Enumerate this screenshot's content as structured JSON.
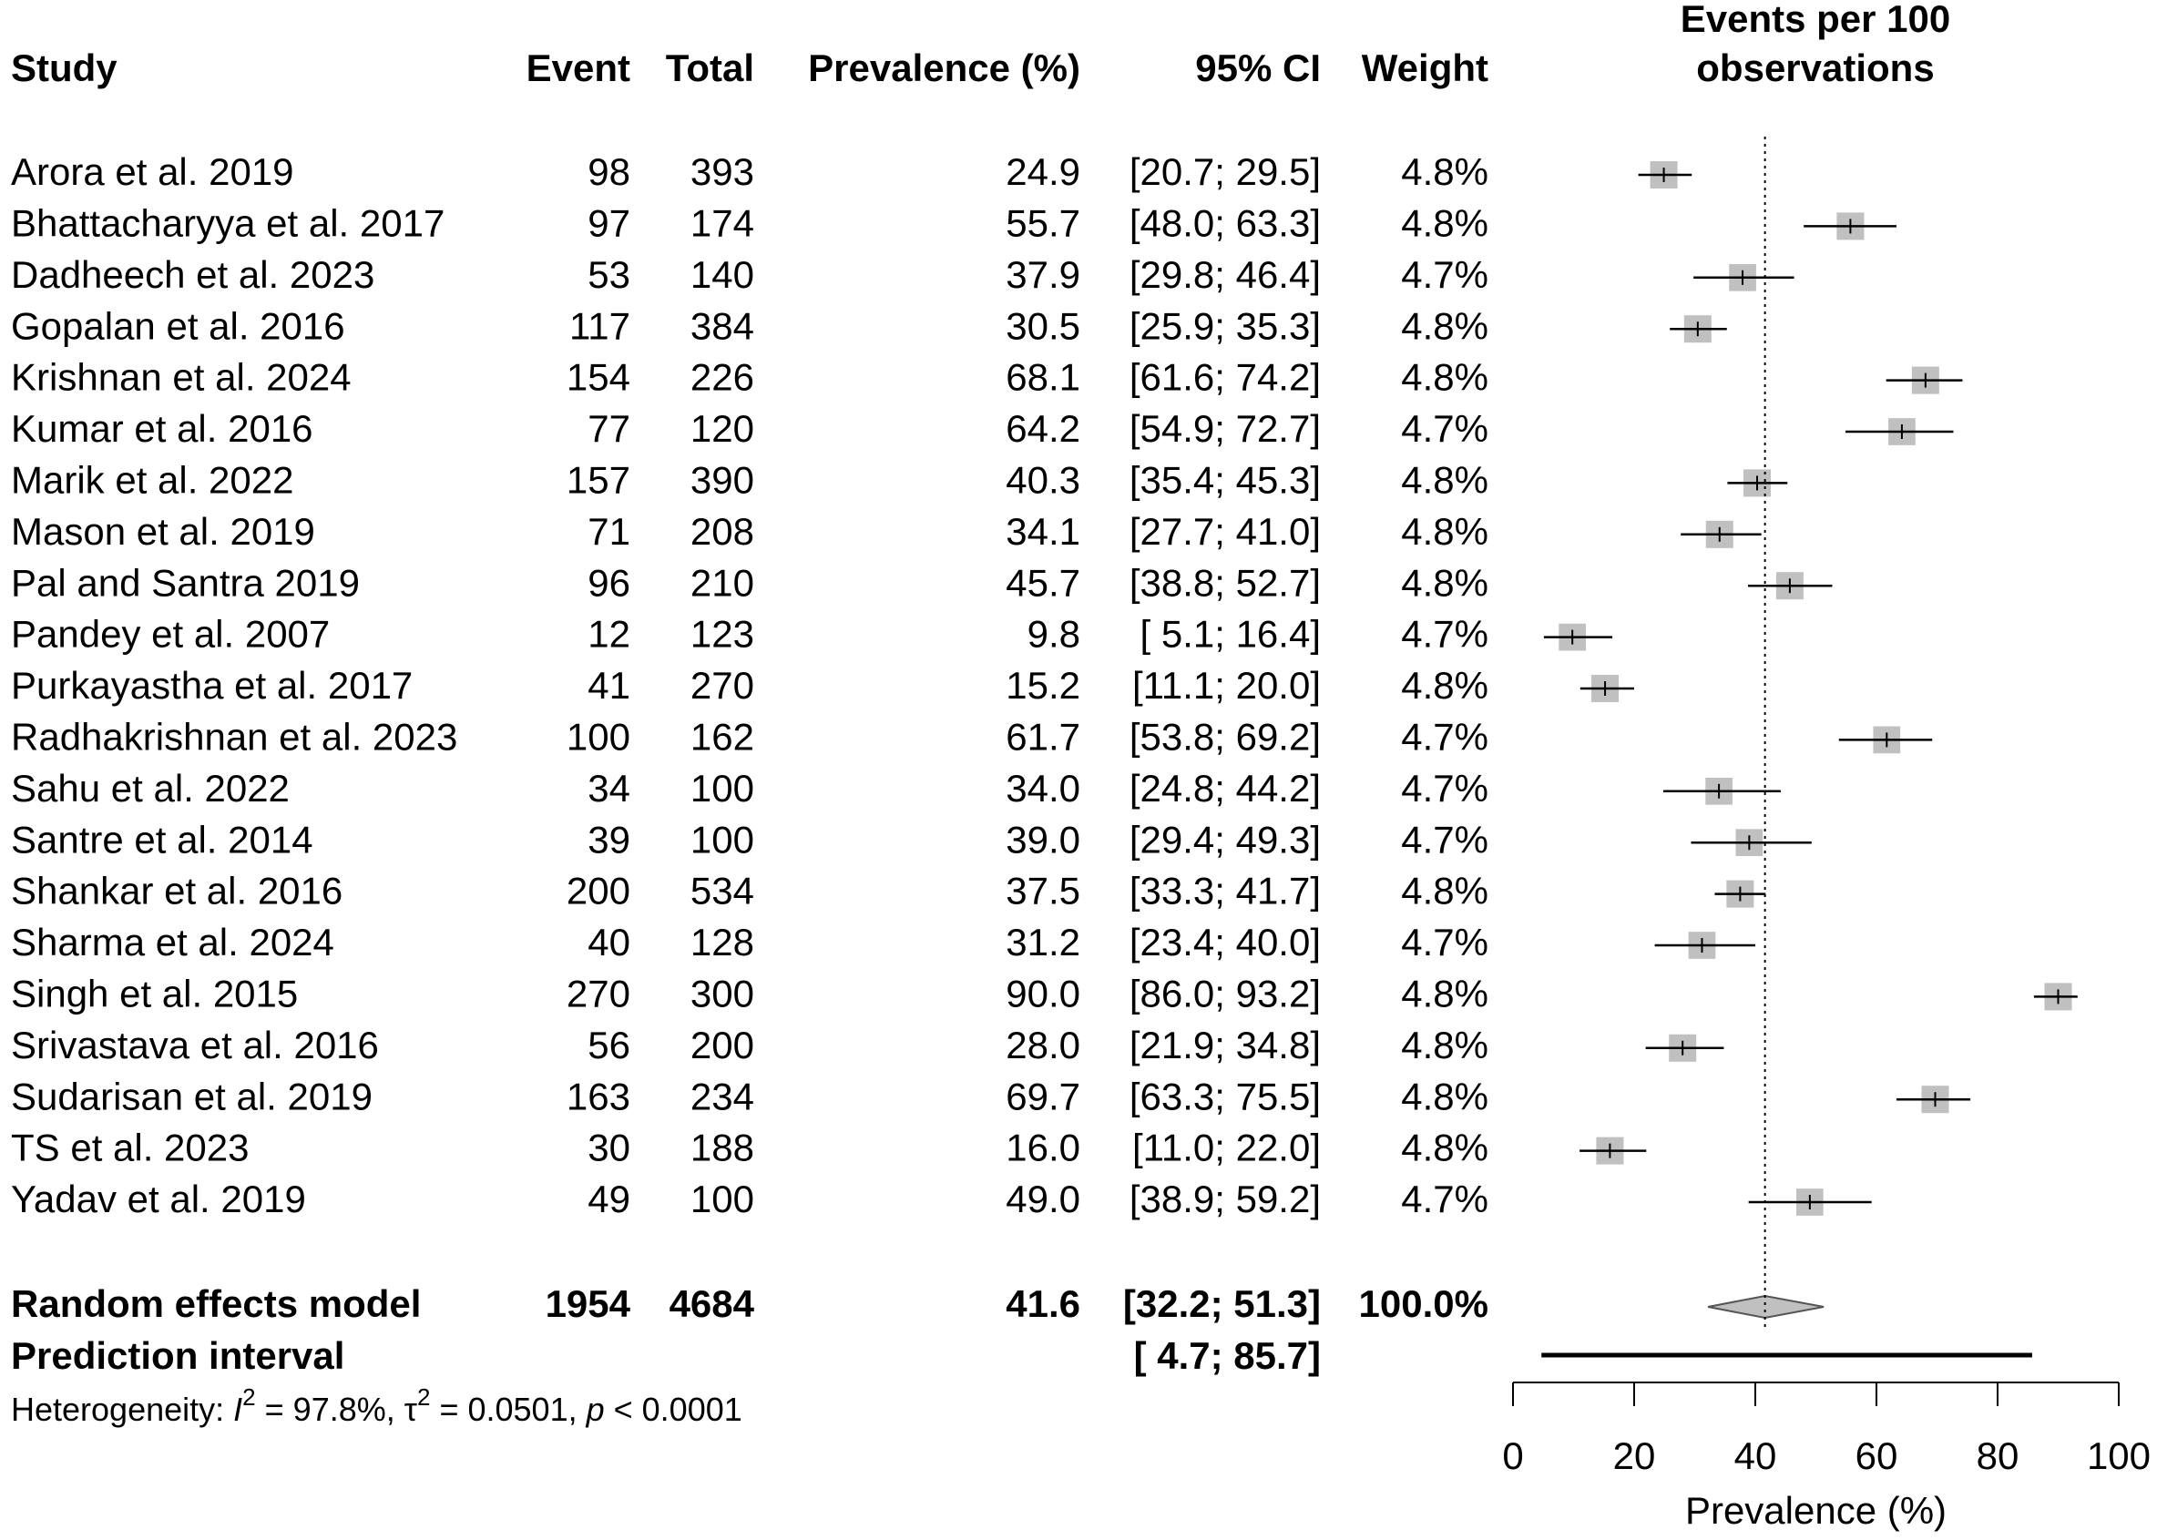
{
  "chart_data": {
    "type": "forest",
    "title": [
      "Events per 100",
      "observations"
    ],
    "columns": [
      "Study",
      "Event",
      "Total",
      "Prevalence (%)",
      "95% CI",
      "Weight"
    ],
    "studies": [
      "Arora et al. 2019",
      "Bhattacharyya et al. 2017",
      "Dadheech et al. 2023",
      "Gopalan et al. 2016",
      "Krishnan et al. 2024",
      "Kumar et al. 2016",
      "Marik et al. 2022",
      "Mason et al. 2019",
      "Pal and Santra 2019",
      "Pandey et al. 2007",
      "Purkayastha et al. 2017",
      "Radhakrishnan et al. 2023",
      "Sahu et al. 2022",
      "Santre et al. 2014",
      "Shankar et al. 2016",
      "Sharma et al. 2024",
      "Singh et al. 2015",
      "Srivastava et al. 2016",
      "Sudarisan et al. 2019",
      "TS et al. 2023",
      "Yadav et al. 2019"
    ],
    "events": [
      98,
      97,
      53,
      117,
      154,
      77,
      157,
      71,
      96,
      12,
      41,
      100,
      34,
      39,
      200,
      40,
      270,
      56,
      163,
      30,
      49
    ],
    "totals": [
      393,
      174,
      140,
      384,
      226,
      120,
      390,
      208,
      210,
      123,
      270,
      162,
      100,
      100,
      534,
      128,
      300,
      200,
      234,
      188,
      100
    ],
    "values": [
      24.9,
      55.7,
      37.9,
      30.5,
      68.1,
      64.2,
      40.3,
      34.1,
      45.7,
      9.8,
      15.2,
      61.7,
      34.0,
      39.0,
      37.5,
      31.2,
      90.0,
      28.0,
      69.7,
      16.0,
      49.0
    ],
    "value_labels": [
      "24.9",
      "55.7",
      "37.9",
      "30.5",
      "68.1",
      "64.2",
      "40.3",
      "34.1",
      "45.7",
      "9.8",
      "15.2",
      "61.7",
      "34.0",
      "39.0",
      "37.5",
      "31.2",
      "90.0",
      "28.0",
      "69.7",
      "16.0",
      "49.0"
    ],
    "ci_low": [
      20.7,
      48.0,
      29.8,
      25.9,
      61.6,
      54.9,
      35.4,
      27.7,
      38.8,
      5.1,
      11.1,
      53.8,
      24.8,
      29.4,
      33.3,
      23.4,
      86.0,
      21.9,
      63.3,
      11.0,
      38.9
    ],
    "ci_high": [
      29.5,
      63.3,
      46.4,
      35.3,
      74.2,
      72.7,
      45.3,
      41.0,
      52.7,
      16.4,
      20.0,
      69.2,
      44.2,
      49.3,
      41.7,
      40.0,
      93.2,
      34.8,
      75.5,
      22.0,
      59.2
    ],
    "ci_labels": [
      "[20.7; 29.5]",
      "[48.0; 63.3]",
      "[29.8; 46.4]",
      "[25.9; 35.3]",
      "[61.6; 74.2]",
      "[54.9; 72.7]",
      "[35.4; 45.3]",
      "[27.7; 41.0]",
      "[38.8; 52.7]",
      "[ 5.1; 16.4]",
      "[11.1; 20.0]",
      "[53.8; 69.2]",
      "[24.8; 44.2]",
      "[29.4; 49.3]",
      "[33.3; 41.7]",
      "[23.4; 40.0]",
      "[86.0; 93.2]",
      "[21.9; 34.8]",
      "[63.3; 75.5]",
      "[11.0; 22.0]",
      "[38.9; 59.2]"
    ],
    "weights": [
      4.8,
      4.8,
      4.7,
      4.8,
      4.8,
      4.7,
      4.8,
      4.8,
      4.8,
      4.7,
      4.8,
      4.7,
      4.7,
      4.7,
      4.8,
      4.7,
      4.8,
      4.8,
      4.8,
      4.8,
      4.7
    ],
    "weight_labels": [
      "4.8%",
      "4.8%",
      "4.7%",
      "4.8%",
      "4.8%",
      "4.7%",
      "4.8%",
      "4.8%",
      "4.8%",
      "4.7%",
      "4.8%",
      "4.7%",
      "4.7%",
      "4.7%",
      "4.8%",
      "4.7%",
      "4.8%",
      "4.8%",
      "4.8%",
      "4.8%",
      "4.7%"
    ],
    "summary": {
      "label": "Random effects model",
      "event": 1954,
      "total": 4684,
      "value": 41.6,
      "ci_low": 32.2,
      "ci_high": 51.3,
      "ci_label": "[32.2; 51.3]",
      "weight": 100.0,
      "weight_label": "100.0%"
    },
    "prediction": {
      "label": "Prediction interval",
      "low": 4.7,
      "high": 85.7,
      "ci_label": "[ 4.7; 85.7]"
    },
    "heterogeneity": {
      "prefix": "Heterogeneity: ",
      "i2_symbol": "I",
      "i2_sup": "2",
      "i2_text": " = 97.8%, ",
      "tau_symbol": "τ",
      "tau_sup": "2",
      "tau_text": " = 0.0501, ",
      "p_symbol": "p",
      "p_text": " < 0.0001"
    },
    "xlabel": "Prevalence (%)",
    "xlim": [
      0,
      100
    ],
    "xticks": [
      0,
      20,
      40,
      60,
      80,
      100
    ],
    "box_color": "#c0c0c0"
  }
}
